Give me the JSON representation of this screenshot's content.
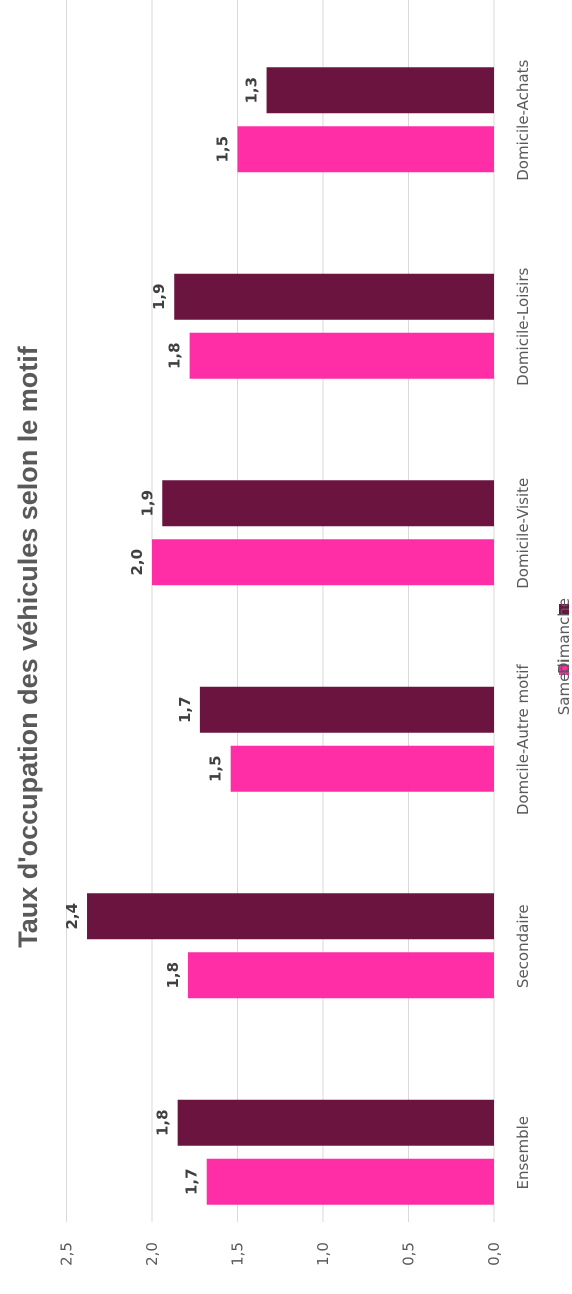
{
  "chart_data": {
    "type": "bar",
    "orientation": "horizontal",
    "title": "Taux d'occupation des véhicules selon le motif",
    "categories": [
      "Domicile-Achats",
      "Domicile-Loisirs",
      "Domicile-Visite",
      "Domcile-Autre motif",
      "Secondaire",
      "Ensemble"
    ],
    "series": [
      {
        "name": "Samedi",
        "color": "#ff2ea6",
        "values": [
          1.5,
          1.78,
          2.0,
          1.54,
          1.79,
          1.68
        ],
        "labels": [
          "1,5",
          "1,8",
          "2,0",
          "1,5",
          "1,8",
          "1,7"
        ]
      },
      {
        "name": "Dimanche",
        "color": "#6b1440",
        "values": [
          1.33,
          1.87,
          1.94,
          1.72,
          2.38,
          1.85
        ],
        "labels": [
          "1,3",
          "1,9",
          "1,9",
          "1,7",
          "2,4",
          "1,8"
        ]
      }
    ],
    "value_axis": {
      "min": 0,
      "max": 2.5,
      "ticks": [
        "0,0",
        "0,5",
        "1,0",
        "1,5",
        "2,0",
        "2,5"
      ]
    },
    "gridlines": true,
    "legend_position": "bottom"
  }
}
